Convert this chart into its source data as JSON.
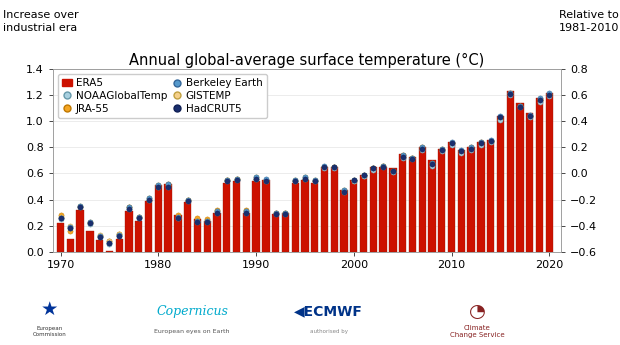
{
  "title": "Annual global-average surface temperature (°C)",
  "ylabel_left": "Increase over\nindustrial era",
  "ylabel_right": "Relative to\n1981-2010",
  "years": [
    1970,
    1971,
    1972,
    1973,
    1974,
    1975,
    1976,
    1977,
    1978,
    1979,
    1980,
    1981,
    1982,
    1983,
    1984,
    1985,
    1986,
    1987,
    1988,
    1989,
    1990,
    1991,
    1992,
    1993,
    1994,
    1995,
    1996,
    1997,
    1998,
    1999,
    2000,
    2001,
    2002,
    2003,
    2004,
    2005,
    2006,
    2007,
    2008,
    2009,
    2010,
    2011,
    2012,
    2013,
    2014,
    2015,
    2016,
    2017,
    2018,
    2019,
    2020
  ],
  "era5": [
    0.22,
    0.1,
    0.32,
    0.16,
    0.09,
    0.01,
    0.1,
    0.31,
    0.24,
    0.39,
    0.51,
    0.52,
    0.28,
    0.38,
    0.25,
    0.24,
    0.3,
    0.53,
    0.54,
    0.3,
    0.54,
    0.55,
    0.29,
    0.3,
    0.53,
    0.55,
    0.53,
    0.65,
    0.65,
    0.47,
    0.55,
    0.59,
    0.65,
    0.65,
    0.64,
    0.75,
    0.73,
    0.8,
    0.7,
    0.79,
    0.84,
    0.78,
    0.8,
    0.84,
    0.86,
    1.04,
    1.23,
    1.14,
    1.06,
    1.18,
    1.22
  ],
  "jra55": [
    0.28,
    0.16,
    0.34,
    0.22,
    0.12,
    0.08,
    0.14,
    0.34,
    0.27,
    0.4,
    0.5,
    0.52,
    0.28,
    0.4,
    0.26,
    0.25,
    0.32,
    0.55,
    0.56,
    0.32,
    0.56,
    0.54,
    0.3,
    0.3,
    0.54,
    0.56,
    0.54,
    0.65,
    0.65,
    0.46,
    0.54,
    0.59,
    0.64,
    0.66,
    0.62,
    0.74,
    0.72,
    0.8,
    0.68,
    0.79,
    0.83,
    0.77,
    0.8,
    0.84,
    0.85,
    1.02,
    1.21,
    1.12,
    1.04,
    1.16,
    1.2
  ],
  "gistemp": [
    0.27,
    0.2,
    0.35,
    0.23,
    0.13,
    0.08,
    0.14,
    0.34,
    0.27,
    0.41,
    0.51,
    0.51,
    0.26,
    0.4,
    0.24,
    0.24,
    0.31,
    0.55,
    0.56,
    0.31,
    0.57,
    0.55,
    0.3,
    0.3,
    0.55,
    0.57,
    0.55,
    0.65,
    0.65,
    0.47,
    0.55,
    0.58,
    0.64,
    0.66,
    0.62,
    0.73,
    0.72,
    0.79,
    0.67,
    0.78,
    0.83,
    0.77,
    0.79,
    0.83,
    0.85,
    1.03,
    1.22,
    1.12,
    1.04,
    1.17,
    1.21
  ],
  "noaa": [
    0.25,
    0.18,
    0.34,
    0.21,
    0.11,
    0.06,
    0.12,
    0.33,
    0.26,
    0.4,
    0.5,
    0.5,
    0.26,
    0.39,
    0.23,
    0.23,
    0.3,
    0.54,
    0.55,
    0.3,
    0.56,
    0.54,
    0.29,
    0.29,
    0.54,
    0.56,
    0.54,
    0.64,
    0.64,
    0.46,
    0.54,
    0.58,
    0.63,
    0.65,
    0.61,
    0.72,
    0.71,
    0.78,
    0.66,
    0.77,
    0.82,
    0.76,
    0.78,
    0.82,
    0.84,
    1.01,
    1.2,
    1.11,
    1.03,
    1.15,
    1.19
  ],
  "berkeley": [
    0.26,
    0.19,
    0.35,
    0.23,
    0.12,
    0.07,
    0.13,
    0.34,
    0.27,
    0.41,
    0.51,
    0.52,
    0.27,
    0.4,
    0.24,
    0.24,
    0.31,
    0.55,
    0.56,
    0.31,
    0.57,
    0.56,
    0.3,
    0.3,
    0.55,
    0.57,
    0.55,
    0.66,
    0.65,
    0.47,
    0.55,
    0.59,
    0.64,
    0.66,
    0.62,
    0.74,
    0.72,
    0.8,
    0.68,
    0.79,
    0.84,
    0.78,
    0.8,
    0.84,
    0.86,
    1.04,
    1.22,
    1.12,
    1.05,
    1.18,
    1.22
  ],
  "hadcrut5": [
    0.26,
    0.18,
    0.34,
    0.22,
    0.11,
    0.07,
    0.12,
    0.33,
    0.26,
    0.4,
    0.5,
    0.5,
    0.26,
    0.39,
    0.23,
    0.23,
    0.3,
    0.54,
    0.55,
    0.3,
    0.56,
    0.54,
    0.29,
    0.29,
    0.54,
    0.56,
    0.54,
    0.65,
    0.65,
    0.46,
    0.55,
    0.59,
    0.64,
    0.65,
    0.62,
    0.73,
    0.71,
    0.79,
    0.67,
    0.78,
    0.83,
    0.77,
    0.79,
    0.83,
    0.85,
    1.03,
    1.21,
    1.11,
    1.04,
    1.16,
    1.2
  ],
  "bar_color": "#CC1100",
  "bar_edge": "#991100",
  "jra55_color": "#F5A623",
  "gistemp_color": "#F5D08A",
  "noaa_color": "#A8D0E0",
  "berkeley_color": "#5599CC",
  "hadcrut5_color": "#1A2E6E",
  "ylim_left": [
    0.0,
    1.4
  ],
  "ylim_right": [
    -0.6,
    0.8
  ],
  "xticks": [
    1970,
    1980,
    1990,
    2000,
    2010,
    2020
  ],
  "yticks_left": [
    0.0,
    0.2,
    0.4,
    0.6,
    0.8,
    1.0,
    1.2,
    1.4
  ],
  "yticks_right": [
    -0.6,
    -0.4,
    -0.2,
    0.0,
    0.2,
    0.4,
    0.6,
    0.8
  ],
  "background_color": "#FFFFFF",
  "title_fontsize": 10.5,
  "label_fontsize": 8,
  "tick_fontsize": 8,
  "legend_fontsize": 7.5
}
